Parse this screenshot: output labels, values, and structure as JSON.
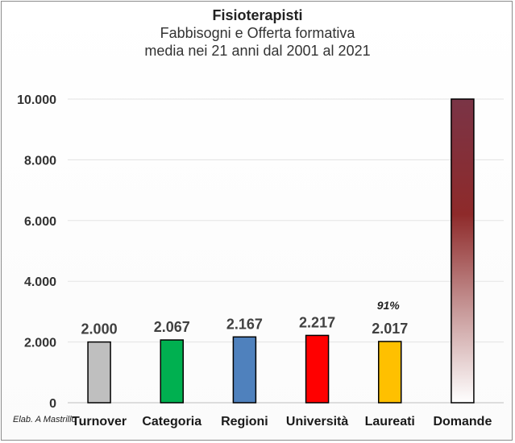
{
  "chart_data": {
    "type": "bar",
    "title": "Fisioterapisti",
    "subtitle_lines": [
      "Fabbisogni e Offerta formativa",
      "media nei 21 anni dal 2001 al 2021"
    ],
    "categories": [
      "Turnover",
      "Categoria",
      "Regioni",
      "Università",
      "Laureati",
      "Domande"
    ],
    "values": [
      2000,
      2067,
      2167,
      2217,
      2017,
      10000
    ],
    "value_labels": [
      "2.000",
      "2.067",
      "2.167",
      "2.217",
      "2.017",
      ""
    ],
    "colors": [
      "#bfbfbf",
      "#00b050",
      "#4f81bd",
      "#ff0000",
      "#ffc000",
      "gradient-maroon"
    ],
    "annotation": {
      "category": "Laureati",
      "text": "91%"
    },
    "yticks": [
      0,
      2000,
      4000,
      6000,
      8000,
      10000
    ],
    "ytick_labels": [
      "0",
      "2.000",
      "4.000",
      "6.000",
      "8.000",
      "10.000"
    ],
    "ylim": [
      0,
      10000
    ],
    "grid": true,
    "legend": "none",
    "xlabel": "",
    "ylabel": ""
  },
  "credit": "Elab. A Mastrillo"
}
